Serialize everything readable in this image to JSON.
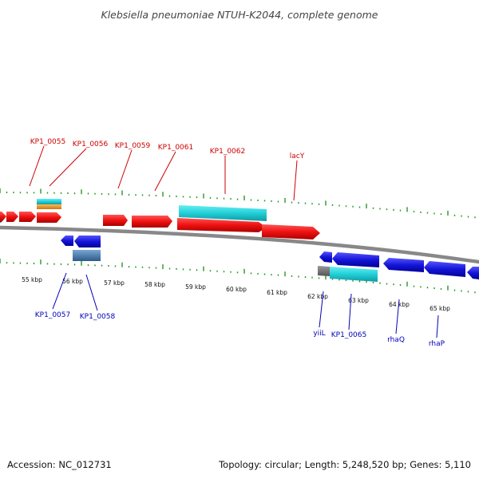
{
  "header": {
    "title": "Klebsiella pneumoniae NTUH-K2044, complete genome"
  },
  "footer": {
    "accession": "Accession: NC_012731",
    "stats": "Topology: circular; Length: 5,248,520 bp; Genes: 5,110"
  },
  "colors": {
    "forward_cds": "#ee1111",
    "reverse_cds": "#1515d8",
    "rna_cyan": "#22cfd8",
    "orange_feature": "#ee9922",
    "grey_feature": "#777777",
    "steel_feature": "#4a7ab0",
    "backbone": "#888888",
    "gc_ticks": "#229922",
    "label_red": "#cc0000",
    "label_blue": "#0000bb"
  },
  "scale_labels": [
    "55 kbp",
    "56 kbp",
    "57 kbp",
    "58 kbp",
    "59 kbp",
    "60 kbp",
    "61 kbp",
    "62 kbp",
    "63 kbp",
    "64 kbp",
    "65 kbp"
  ],
  "forward_labels": [
    "KP1_0055",
    "KP1_0056",
    "KP1_0059",
    "KP1_0061",
    "KP1_0062",
    "lacY"
  ],
  "reverse_labels": [
    "KP1_0057",
    "KP1_0058",
    "yiiL",
    "KP1_0065",
    "rhaQ",
    "rhaP"
  ]
}
